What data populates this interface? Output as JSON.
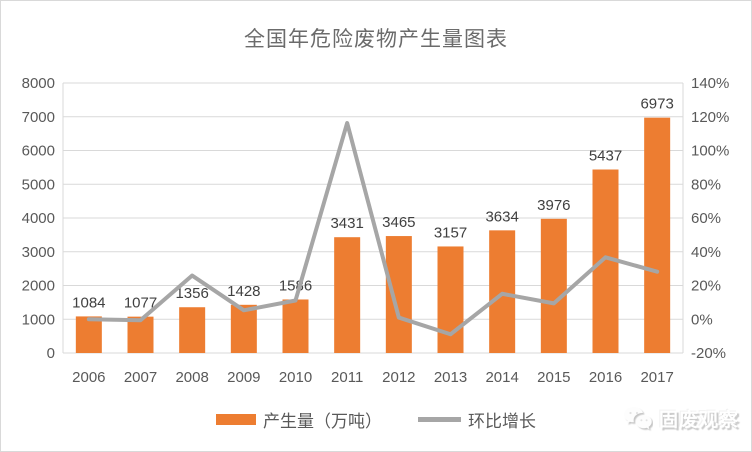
{
  "title": "全国年危险废物产生量图表",
  "legend": {
    "bar_label": "产生量（万吨）",
    "line_label": "环比增长"
  },
  "watermark": {
    "text": "固废观察",
    "icon": "wechat-chat-bubbles-icon"
  },
  "colors": {
    "bar": "#ED7D31",
    "line": "#A6A6A6",
    "gridline": "#D9D9D9",
    "axis_text": "#595959",
    "data_label_text": "#404040",
    "title_text": "#6B6B6B"
  },
  "chart_data": {
    "type": "bar",
    "title": "全国年危险废物产生量图表",
    "categories": [
      "2006",
      "2007",
      "2008",
      "2009",
      "2010",
      "2011",
      "2012",
      "2013",
      "2014",
      "2015",
      "2016",
      "2017"
    ],
    "series": [
      {
        "name": "产生量（万吨）",
        "type": "bar",
        "axis": "left",
        "color": "#ED7D31",
        "values": [
          1084,
          1077,
          1356,
          1428,
          1586,
          3431,
          3465,
          3157,
          3634,
          3976,
          5437,
          6973
        ],
        "data_labels": [
          1084,
          1077,
          1356,
          1428,
          1586,
          3431,
          3465,
          3157,
          3634,
          3976,
          5437,
          6973
        ]
      },
      {
        "name": "环比增长",
        "type": "line",
        "axis": "right",
        "color": "#A6A6A6",
        "values_percent": [
          0,
          -0.6,
          25.9,
          5.3,
          11.1,
          116.3,
          1.0,
          -8.9,
          15.1,
          9.4,
          36.7,
          28.2
        ]
      }
    ],
    "left_axis": {
      "min": 0,
      "max": 8000,
      "step": 1000,
      "tick_labels": [
        "0",
        "1000",
        "2000",
        "3000",
        "4000",
        "5000",
        "6000",
        "7000",
        "8000"
      ]
    },
    "right_axis": {
      "min": -20,
      "max": 140,
      "step": 20,
      "tick_labels": [
        "-20%",
        "0%",
        "20%",
        "40%",
        "60%",
        "80%",
        "100%",
        "120%",
        "140%"
      ]
    },
    "grid": true,
    "legend_position": "bottom",
    "data_labels_on": true
  }
}
